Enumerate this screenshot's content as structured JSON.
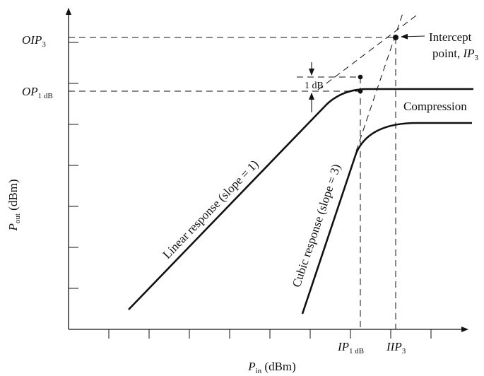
{
  "axes": {
    "y_label_main": "P",
    "y_label_sub": "out",
    "y_label_unit": " (dBm)",
    "x_label_main": "P",
    "x_label_sub": "in",
    "x_label_unit": " (dBm)"
  },
  "y_ticks": {
    "oip3_main": "OIP",
    "oip3_sub": "3",
    "op1db_main": "OP",
    "op1db_sub": "1 dB"
  },
  "x_ticks": {
    "ip1db_main": "IP",
    "ip1db_sub": "1 dB",
    "iip3_main": "IIP",
    "iip3_sub": "3"
  },
  "annotations": {
    "intercept_line1": "Intercept",
    "intercept_line2_a": "point, ",
    "intercept_line2_b": "IP",
    "intercept_line2_sub": "3",
    "one_db": "1 dB",
    "compression": "Compression",
    "linear_response": "Linear response (slope = 1)",
    "cubic_response": "Cubic response (slope = 3)"
  },
  "colors": {
    "ink": "#111111",
    "background": "#ffffff"
  }
}
